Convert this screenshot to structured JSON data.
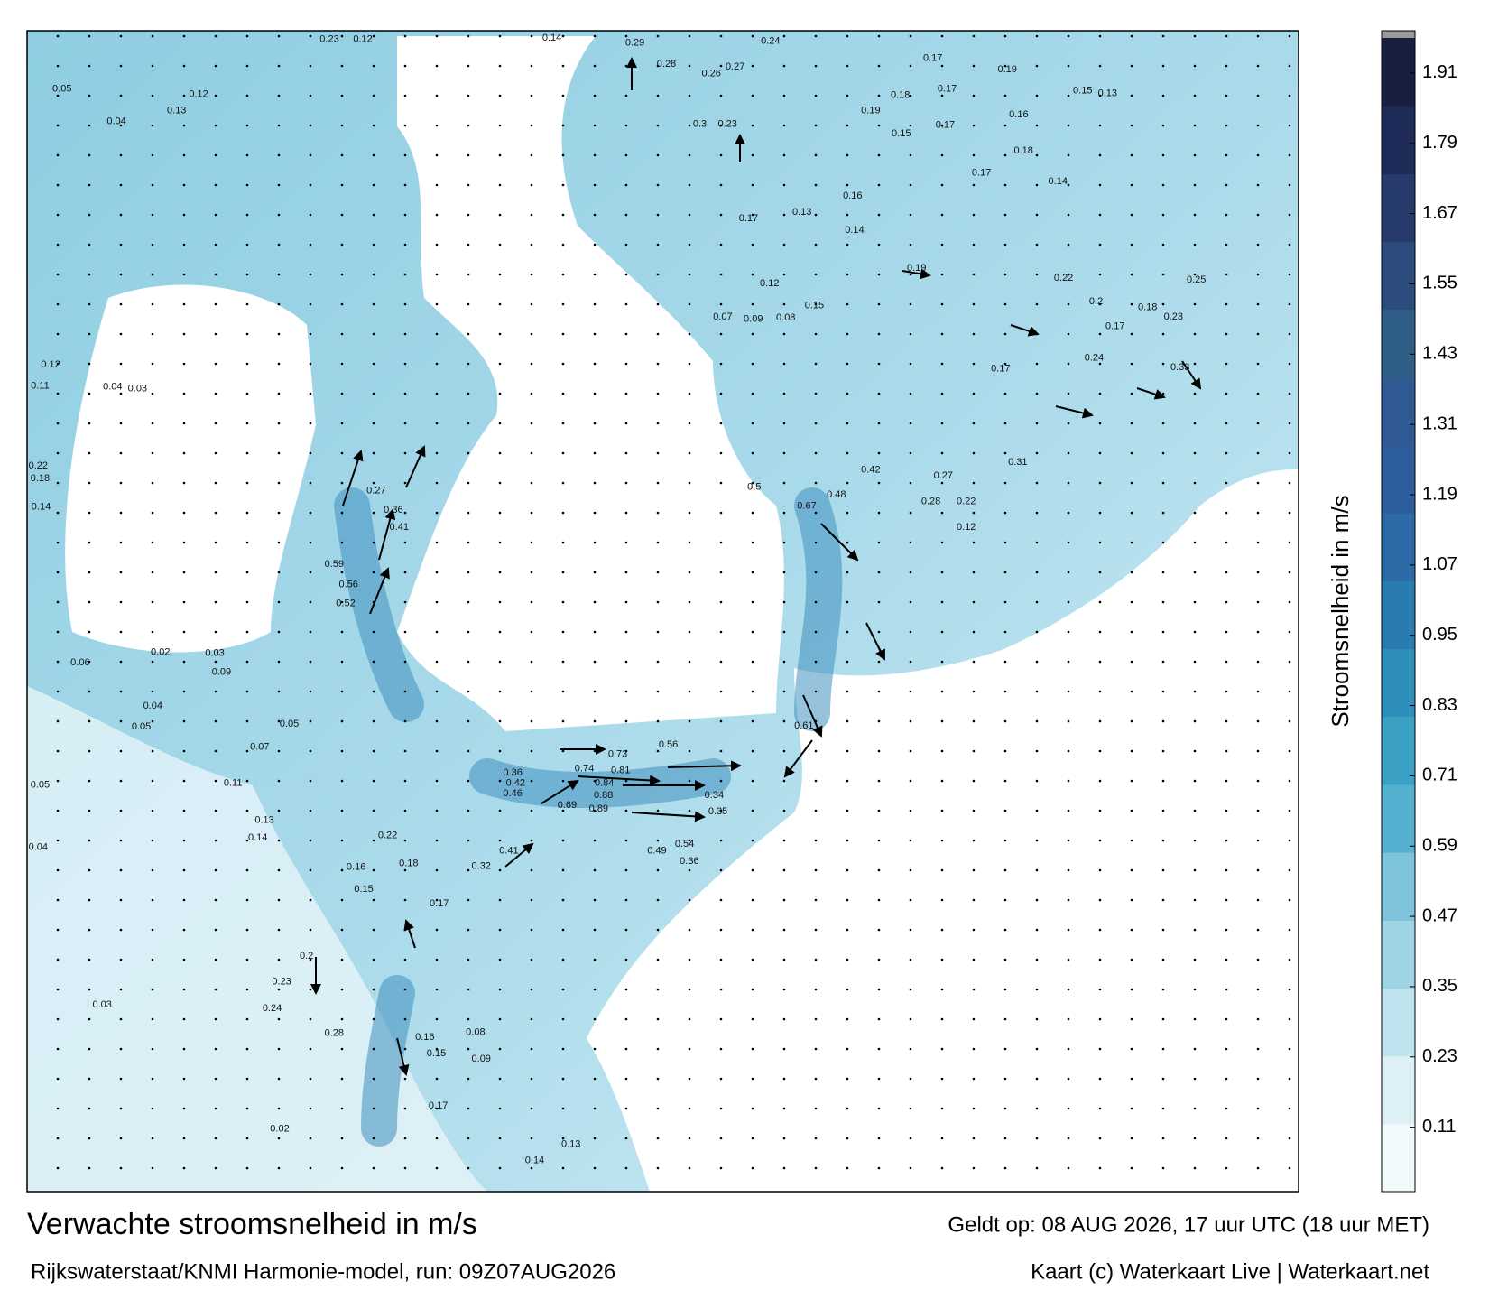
{
  "title": "Verwachte stroomsnelheid in m/s",
  "subtitle": "Rijkswaterstaat/KNMI Harmonie-model, run: 09Z07AUG2026",
  "valid_time": "Geldt op: 08 AUG 2026, 17 uur UTC (18 uur MET)",
  "credit": "Kaart (c) Waterkaart Live | Waterkaart.net",
  "colorbar": {
    "label": "Stroomsnelheid in m/s",
    "ylim": [
      0,
      1.97
    ],
    "yticks": [
      0.11,
      0.23,
      0.35,
      0.47,
      0.59,
      0.71,
      0.83,
      0.95,
      1.07,
      1.19,
      1.31,
      1.43,
      1.55,
      1.67,
      1.79,
      1.91
    ],
    "colors": [
      "#f3fafc",
      "#dcf0f6",
      "#bfe3ee",
      "#9fd4e5",
      "#7cc3db",
      "#55b0cf",
      "#3aa0c4",
      "#2d8fba",
      "#2a7bb0",
      "#2b6aa6",
      "#2e5d9e",
      "#305a93",
      "#2f5f86",
      "#2d4c7e",
      "#263a6c",
      "#1e2a58",
      "#18203f"
    ]
  },
  "map_labels": [
    0.05,
    0.04,
    0.13,
    0.12,
    0.23,
    0.12,
    0.14,
    0.29,
    0.24,
    0.17,
    0.19,
    0.28,
    0.26,
    0.27,
    0.18,
    0.17,
    0.15,
    0.13,
    0.19,
    0.15,
    0.17,
    0.16,
    0.3,
    0.23,
    0.18,
    0.17,
    0.14,
    0.16,
    0.13,
    0.17,
    0.14,
    0.19,
    0.12,
    0.07,
    0.09,
    0.08,
    0.15,
    0.17,
    0.24,
    0.33,
    0.31,
    0.27,
    0.28,
    0.22,
    0.12,
    0.5,
    0.67,
    0.48,
    0.42,
    0.56,
    0.52,
    0.59,
    0.41,
    0.36,
    0.27,
    0.61,
    0.74,
    0.81,
    0.84,
    0.88,
    0.89,
    0.69,
    0.73,
    0.56,
    0.34,
    0.35,
    0.54,
    0.49,
    0.36,
    0.32,
    0.41,
    0.46,
    0.42,
    0.36,
    0.22,
    0.18,
    0.16,
    0.15,
    0.17,
    0.2,
    0.23,
    0.24,
    0.28,
    0.16,
    0.15,
    0.17,
    0.08,
    0.09,
    0.14,
    0.13,
    0.02,
    0.03,
    0.04,
    0.05,
    0.13,
    0.14,
    0.11,
    0.07,
    0.05,
    0.04,
    0.05,
    0.09,
    0.03,
    0.02,
    0.06,
    0.12,
    0.11,
    0.03,
    0.04,
    0.14,
    0.22,
    0.18,
    0.17,
    0.2,
    0.22,
    0.25,
    0.18,
    0.23
  ]
}
